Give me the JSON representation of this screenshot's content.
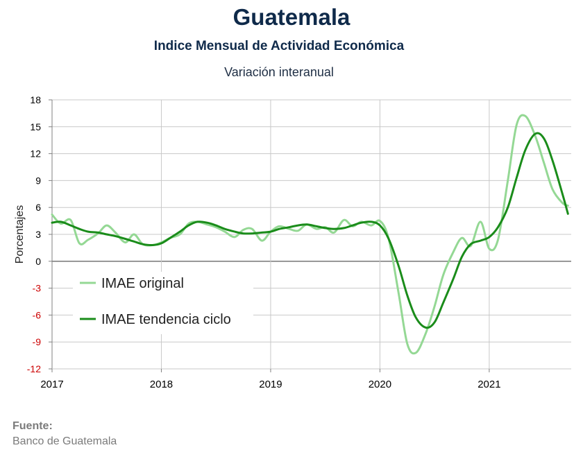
{
  "header": {
    "title": "Guatemala",
    "subtitle": "Indice Mensual de  Actividad Económica",
    "subtitle2": "Variación interanual"
  },
  "source": {
    "label": "Fuente:",
    "text": "Banco de Guatemala"
  },
  "colors": {
    "original": "#94d894",
    "trend": "#1a8c1a",
    "positive_ticks": "#000000",
    "negative_ticks": "#cc0000",
    "grid": "#c8c8c8",
    "zero_line": "#808080"
  },
  "chart_data": {
    "type": "line",
    "title": "Guatemala",
    "ylabel": "Porcentajes",
    "ylim": [
      -12,
      18
    ],
    "yticks": [
      18,
      15,
      12,
      9,
      6,
      3,
      0,
      -3,
      -6,
      -9,
      -12
    ],
    "xlim": [
      2017.0,
      2021.75
    ],
    "xticks": [
      "2017",
      "2018",
      "2019",
      "2020",
      "2021"
    ],
    "grid": true,
    "legend_position": "left",
    "series": [
      {
        "name": "IMAE original",
        "x": [
          2017.0,
          2017.08,
          2017.17,
          2017.25,
          2017.33,
          2017.42,
          2017.5,
          2017.58,
          2017.67,
          2017.75,
          2017.83,
          2017.92,
          2018.0,
          2018.08,
          2018.17,
          2018.25,
          2018.33,
          2018.42,
          2018.5,
          2018.58,
          2018.67,
          2018.75,
          2018.83,
          2018.92,
          2019.0,
          2019.08,
          2019.17,
          2019.25,
          2019.33,
          2019.42,
          2019.5,
          2019.58,
          2019.67,
          2019.75,
          2019.83,
          2019.92,
          2020.0,
          2020.08,
          2020.17,
          2020.25,
          2020.33,
          2020.42,
          2020.5,
          2020.58,
          2020.67,
          2020.75,
          2020.83,
          2020.92,
          2021.0,
          2021.08,
          2021.17,
          2021.25,
          2021.33,
          2021.42,
          2021.5,
          2021.58,
          2021.67,
          2021.72
        ],
        "values": [
          5.2,
          4.2,
          4.6,
          2.0,
          2.4,
          3.1,
          4.0,
          3.2,
          2.1,
          3.0,
          1.9,
          1.8,
          2.1,
          2.6,
          3.0,
          4.2,
          4.4,
          4.1,
          3.8,
          3.3,
          2.7,
          3.5,
          3.6,
          2.3,
          3.3,
          3.9,
          3.6,
          3.4,
          4.1,
          3.6,
          3.8,
          3.2,
          4.6,
          3.9,
          4.4,
          4.0,
          4.5,
          2.5,
          -3.5,
          -9.2,
          -10.2,
          -8.0,
          -5.0,
          -1.5,
          1.0,
          2.6,
          1.7,
          4.4,
          1.4,
          2.4,
          9.0,
          15.2,
          16.2,
          14.0,
          11.0,
          8.0,
          6.5,
          6.2
        ]
      },
      {
        "name": "IMAE tendencia ciclo",
        "x": [
          2017.0,
          2017.08,
          2017.17,
          2017.25,
          2017.33,
          2017.42,
          2017.5,
          2017.58,
          2017.67,
          2017.75,
          2017.83,
          2017.92,
          2018.0,
          2018.08,
          2018.17,
          2018.25,
          2018.33,
          2018.42,
          2018.5,
          2018.58,
          2018.67,
          2018.75,
          2018.83,
          2018.92,
          2019.0,
          2019.08,
          2019.17,
          2019.25,
          2019.33,
          2019.42,
          2019.5,
          2019.58,
          2019.67,
          2019.75,
          2019.83,
          2019.92,
          2020.0,
          2020.08,
          2020.17,
          2020.25,
          2020.33,
          2020.42,
          2020.5,
          2020.58,
          2020.67,
          2020.75,
          2020.83,
          2020.92,
          2021.0,
          2021.08,
          2021.17,
          2021.25,
          2021.33,
          2021.42,
          2021.5,
          2021.58,
          2021.67,
          2021.72
        ],
        "values": [
          4.3,
          4.4,
          4.0,
          3.6,
          3.3,
          3.2,
          3.0,
          2.8,
          2.5,
          2.2,
          1.9,
          1.8,
          2.0,
          2.6,
          3.3,
          4.0,
          4.4,
          4.3,
          4.0,
          3.6,
          3.3,
          3.1,
          3.1,
          3.2,
          3.3,
          3.6,
          3.8,
          4.0,
          4.1,
          3.9,
          3.7,
          3.6,
          3.7,
          4.0,
          4.3,
          4.4,
          4.0,
          2.5,
          -0.5,
          -3.8,
          -6.3,
          -7.4,
          -6.8,
          -4.6,
          -2.0,
          0.5,
          1.9,
          2.3,
          2.7,
          3.8,
          6.0,
          9.3,
          12.4,
          14.2,
          13.7,
          11.2,
          7.5,
          5.3
        ]
      }
    ]
  }
}
